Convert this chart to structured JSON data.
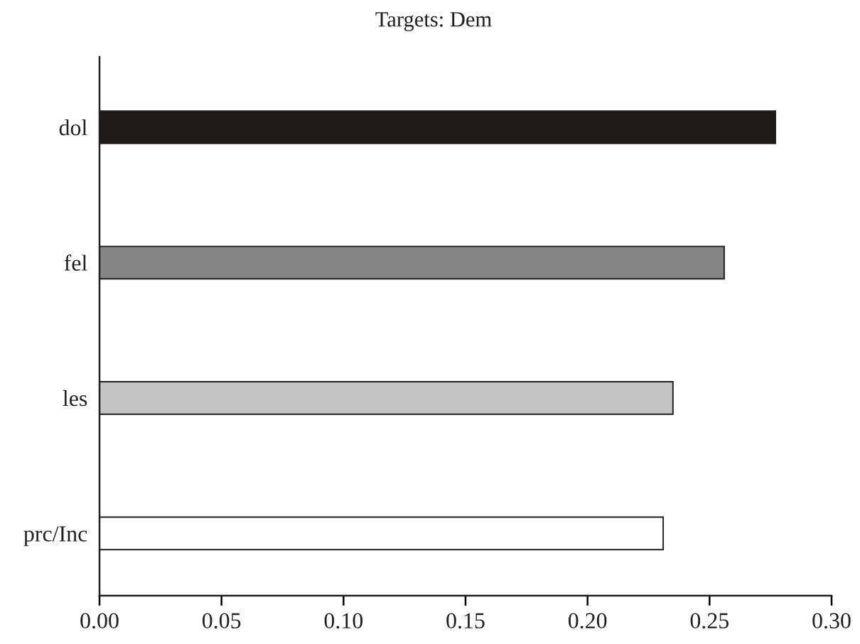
{
  "chart_data": {
    "type": "bar",
    "orientation": "horizontal",
    "title": "Targets: Dem",
    "categories": [
      "dol",
      "fel",
      "les",
      "prc/Inc"
    ],
    "values": [
      0.277,
      0.256,
      0.235,
      0.231
    ],
    "colors": [
      "#1f1a17",
      "#858585",
      "#c4c4c4",
      "#ffffff"
    ],
    "xlim": [
      0,
      0.3
    ],
    "xticks": [
      {
        "value": 0,
        "label": "0.00"
      },
      {
        "value": 0.05,
        "label": "0.05"
      },
      {
        "value": 0.1,
        "label": "0.10"
      },
      {
        "value": 0.15,
        "label": "0.15"
      },
      {
        "value": 0.2,
        "label": "0.20"
      },
      {
        "value": 0.25,
        "label": "0.25"
      },
      {
        "value": 0.3,
        "label": "0.30"
      }
    ]
  }
}
